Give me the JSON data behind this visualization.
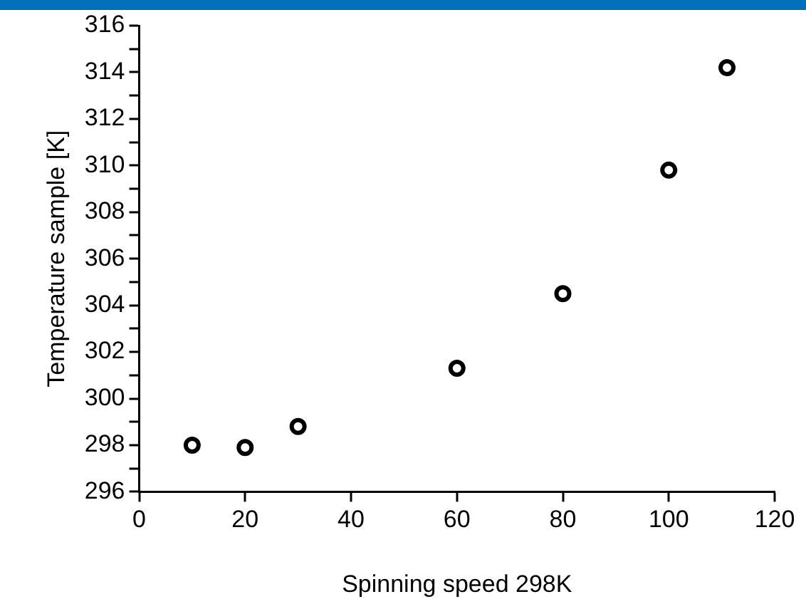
{
  "chart_data": {
    "type": "scatter",
    "xlabel": "Spinning speed 298K",
    "ylabel": "Temperature sample [K]",
    "x": [
      10,
      20,
      30,
      60,
      80,
      100,
      111
    ],
    "series": [
      {
        "color": "#000000",
        "values": [
          298.0,
          297.9,
          298.8,
          301.3,
          304.5,
          309.8,
          314.2
        ]
      }
    ],
    "xlim": [
      0,
      120
    ],
    "xticks": [
      0,
      20,
      40,
      60,
      80,
      100,
      120
    ],
    "ylim": [
      296,
      316
    ],
    "yticks": [
      296,
      {
        "value": 297,
        "label": null
      },
      298,
      {
        "value": 299,
        "label": null
      },
      300,
      {
        "value": 301,
        "label": null
      },
      302,
      {
        "value": 303,
        "label": null
      },
      304,
      {
        "value": 305,
        "label": null
      },
      306,
      {
        "value": 307,
        "label": null
      },
      308,
      {
        "value": 309,
        "label": null
      },
      310,
      {
        "value": 311,
        "label": null
      },
      312,
      {
        "value": 313,
        "label": null
      },
      314,
      {
        "value": 315,
        "label": null
      },
      316
    ],
    "grid": false,
    "legend": false,
    "marker": "circle"
  }
}
